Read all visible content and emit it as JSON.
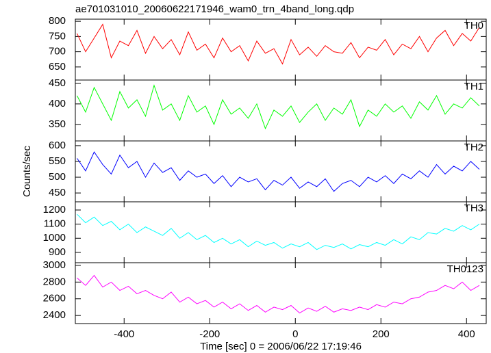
{
  "chart_data": [
    {
      "type": "line",
      "title": "ae701031010_20060622171946_wam0_trn_4band_long.qdp",
      "x": [
        -510,
        -490,
        -470,
        -450,
        -430,
        -410,
        -390,
        -370,
        -350,
        -330,
        -310,
        -290,
        -270,
        -250,
        -230,
        -210,
        -190,
        -170,
        -150,
        -130,
        -110,
        -90,
        -70,
        -50,
        -30,
        -10,
        10,
        30,
        50,
        70,
        90,
        110,
        130,
        150,
        170,
        190,
        210,
        230,
        250,
        270,
        290,
        310,
        330,
        350,
        370,
        390,
        410,
        430
      ],
      "series": [
        {
          "name": "TH0",
          "color": "#ff0000",
          "values": [
            760,
            700,
            745,
            790,
            680,
            735,
            720,
            770,
            695,
            750,
            710,
            740,
            690,
            765,
            705,
            725,
            680,
            745,
            700,
            720,
            670,
            735,
            695,
            710,
            660,
            740,
            690,
            715,
            685,
            720,
            700,
            695,
            730,
            680,
            715,
            705,
            740,
            690,
            725,
            710,
            750,
            700,
            745,
            770,
            720,
            760,
            735,
            780
          ]
        }
      ],
      "xlim": [
        -514,
        446
      ],
      "xticks": [
        -400,
        -200,
        0,
        200,
        400
      ],
      "ylim": [
        607,
        807
      ],
      "yticks": [
        650,
        700,
        750,
        800
      ]
    },
    {
      "type": "line",
      "x": [
        -510,
        -490,
        -470,
        -450,
        -430,
        -410,
        -390,
        -370,
        -350,
        -330,
        -310,
        -290,
        -270,
        -250,
        -230,
        -210,
        -190,
        -170,
        -150,
        -130,
        -110,
        -90,
        -70,
        -50,
        -30,
        -10,
        10,
        30,
        50,
        70,
        90,
        110,
        130,
        150,
        170,
        190,
        210,
        230,
        250,
        270,
        290,
        310,
        330,
        350,
        370,
        390,
        410,
        430
      ],
      "series": [
        {
          "name": "TH1",
          "color": "#00ff00",
          "values": [
            420,
            380,
            440,
            400,
            360,
            430,
            390,
            410,
            370,
            445,
            385,
            400,
            360,
            420,
            380,
            395,
            350,
            410,
            375,
            390,
            365,
            400,
            340,
            385,
            370,
            395,
            355,
            380,
            400,
            360,
            390,
            375,
            410,
            345,
            385,
            370,
            400,
            380,
            395,
            365,
            405,
            385,
            420,
            375,
            400,
            390,
            415,
            395
          ]
        }
      ],
      "xlim": [
        -514,
        446
      ],
      "xticks": [
        -400,
        -200,
        0,
        200,
        400
      ],
      "ylim": [
        310,
        458
      ],
      "yticks": [
        350,
        400,
        450
      ]
    },
    {
      "type": "line",
      "ylabel": "Counts/sec",
      "x": [
        -510,
        -490,
        -470,
        -450,
        -430,
        -410,
        -390,
        -370,
        -350,
        -330,
        -310,
        -290,
        -270,
        -250,
        -230,
        -210,
        -190,
        -170,
        -150,
        -130,
        -110,
        -90,
        -70,
        -50,
        -30,
        -10,
        10,
        30,
        50,
        70,
        90,
        110,
        130,
        150,
        170,
        190,
        210,
        230,
        250,
        270,
        290,
        310,
        330,
        350,
        370,
        390,
        410,
        430
      ],
      "series": [
        {
          "name": "TH2",
          "color": "#0000ff",
          "values": [
            560,
            520,
            580,
            540,
            510,
            570,
            530,
            550,
            500,
            545,
            515,
            530,
            490,
            520,
            500,
            510,
            480,
            505,
            470,
            500,
            485,
            495,
            460,
            490,
            475,
            500,
            465,
            485,
            470,
            495,
            455,
            480,
            490,
            470,
            500,
            485,
            505,
            480,
            510,
            495,
            520,
            500,
            540,
            510,
            535,
            520,
            550,
            525
          ]
        }
      ],
      "xlim": [
        -514,
        446
      ],
      "xticks": [
        -400,
        -200,
        0,
        200,
        400
      ],
      "ylim": [
        422,
        615
      ],
      "yticks": [
        450,
        500,
        550,
        600
      ]
    },
    {
      "type": "line",
      "x": [
        -510,
        -490,
        -470,
        -450,
        -430,
        -410,
        -390,
        -370,
        -350,
        -330,
        -310,
        -290,
        -270,
        -250,
        -230,
        -210,
        -190,
        -170,
        -150,
        -130,
        -110,
        -90,
        -70,
        -50,
        -30,
        -10,
        10,
        30,
        50,
        70,
        90,
        110,
        130,
        150,
        170,
        190,
        210,
        230,
        250,
        270,
        290,
        310,
        330,
        350,
        370,
        390,
        410,
        430
      ],
      "series": [
        {
          "name": "TH3",
          "color": "#00ffff",
          "values": [
            1170,
            1110,
            1150,
            1090,
            1120,
            1060,
            1100,
            1040,
            1080,
            1050,
            1020,
            1070,
            1000,
            1040,
            990,
            1020,
            970,
            1000,
            960,
            990,
            940,
            980,
            950,
            970,
            930,
            960,
            940,
            970,
            920,
            950,
            935,
            960,
            925,
            955,
            940,
            970,
            950,
            990,
            960,
            1010,
            990,
            1040,
            1030,
            1070,
            1050,
            1090,
            1060,
            1100
          ]
        }
      ],
      "xlim": [
        -514,
        446
      ],
      "xticks": [
        -400,
        -200,
        0,
        200,
        400
      ],
      "ylim": [
        827,
        1258
      ],
      "yticks": [
        900,
        1000,
        1100,
        1200
      ]
    },
    {
      "type": "line",
      "xlabel": "Time [sec] 0 = 2006/06/22 17:19:46",
      "x": [
        -510,
        -490,
        -470,
        -450,
        -430,
        -410,
        -390,
        -370,
        -350,
        -330,
        -310,
        -290,
        -270,
        -250,
        -230,
        -210,
        -190,
        -170,
        -150,
        -130,
        -110,
        -90,
        -70,
        -50,
        -30,
        -10,
        10,
        30,
        50,
        70,
        90,
        110,
        130,
        150,
        170,
        190,
        210,
        230,
        250,
        270,
        290,
        310,
        330,
        350,
        370,
        390,
        410,
        430
      ],
      "series": [
        {
          "name": "TH0123",
          "color": "#ff00ff",
          "values": [
            2850,
            2760,
            2880,
            2740,
            2800,
            2700,
            2750,
            2660,
            2700,
            2640,
            2600,
            2680,
            2560,
            2620,
            2540,
            2580,
            2500,
            2560,
            2480,
            2540,
            2460,
            2520,
            2440,
            2500,
            2470,
            2520,
            2430,
            2490,
            2450,
            2510,
            2440,
            2480,
            2460,
            2500,
            2470,
            2530,
            2500,
            2560,
            2540,
            2600,
            2620,
            2680,
            2700,
            2760,
            2720,
            2800,
            2700,
            2760
          ]
        }
      ],
      "xlim": [
        -514,
        446
      ],
      "xticks": [
        -400,
        -200,
        0,
        200,
        400
      ],
      "ylim": [
        2303,
        3032
      ],
      "yticks": [
        2400,
        2600,
        2800,
        3000
      ]
    }
  ]
}
